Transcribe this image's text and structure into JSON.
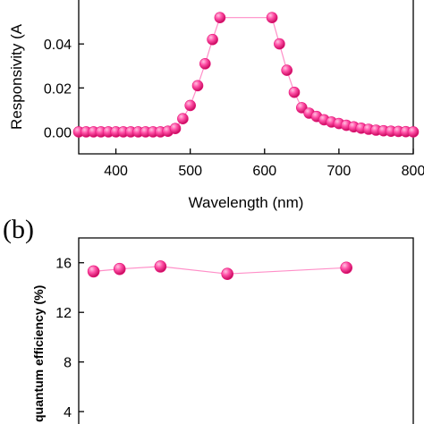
{
  "colors": {
    "series": "#e8157a",
    "series_light": "#ff8fc8",
    "axis": "#000000"
  },
  "chart_data": [
    {
      "type": "scatter",
      "panel_label": "",
      "xlabel": "Wavelength (nm)",
      "ylabel": "Responsivity (A",
      "xlim": [
        350,
        800
      ],
      "ylim": [
        -0.01,
        0.06
      ],
      "x_ticks": [
        "400",
        "500",
        "600",
        "700",
        "800"
      ],
      "y_ticks": [
        "0.00",
        "0.02",
        "0.04"
      ],
      "grid": false,
      "series": [
        {
          "x": [
            350,
            360,
            370,
            380,
            390,
            400,
            410,
            420,
            430,
            440,
            450,
            460,
            470,
            480,
            490,
            500,
            510,
            520,
            530,
            540,
            610,
            620,
            630,
            640,
            650,
            660,
            670,
            680,
            690,
            700,
            710,
            720,
            730,
            740,
            750,
            760,
            770,
            780,
            790,
            800
          ],
          "y": [
            0.0,
            0.0,
            0.0,
            0.0,
            0.0,
            0.0,
            0.0,
            0.0,
            0.0,
            0.0,
            0.0,
            0.0,
            0.0003,
            0.0015,
            0.006,
            0.012,
            0.021,
            0.031,
            0.042,
            0.052,
            0.052,
            0.04,
            0.028,
            0.018,
            0.011,
            0.0085,
            0.007,
            0.0055,
            0.0045,
            0.0038,
            0.003,
            0.0023,
            0.0017,
            0.0012,
            0.0008,
            0.0005,
            0.0003,
            0.0002,
            0.0001,
            0.0
          ]
        }
      ]
    },
    {
      "type": "scatter",
      "panel_label": "(b)",
      "xlabel": "",
      "ylabel": "quantum efficiency (%)",
      "xlim": [
        350,
        800
      ],
      "ylim": [
        3,
        18
      ],
      "x_ticks": [],
      "y_ticks": [
        "4",
        "8",
        "12",
        "16"
      ],
      "grid": false,
      "series": [
        {
          "x": [
            370,
            405,
            460,
            550,
            710
          ],
          "y": [
            15.3,
            15.5,
            15.7,
            15.1,
            15.6
          ]
        }
      ]
    }
  ]
}
